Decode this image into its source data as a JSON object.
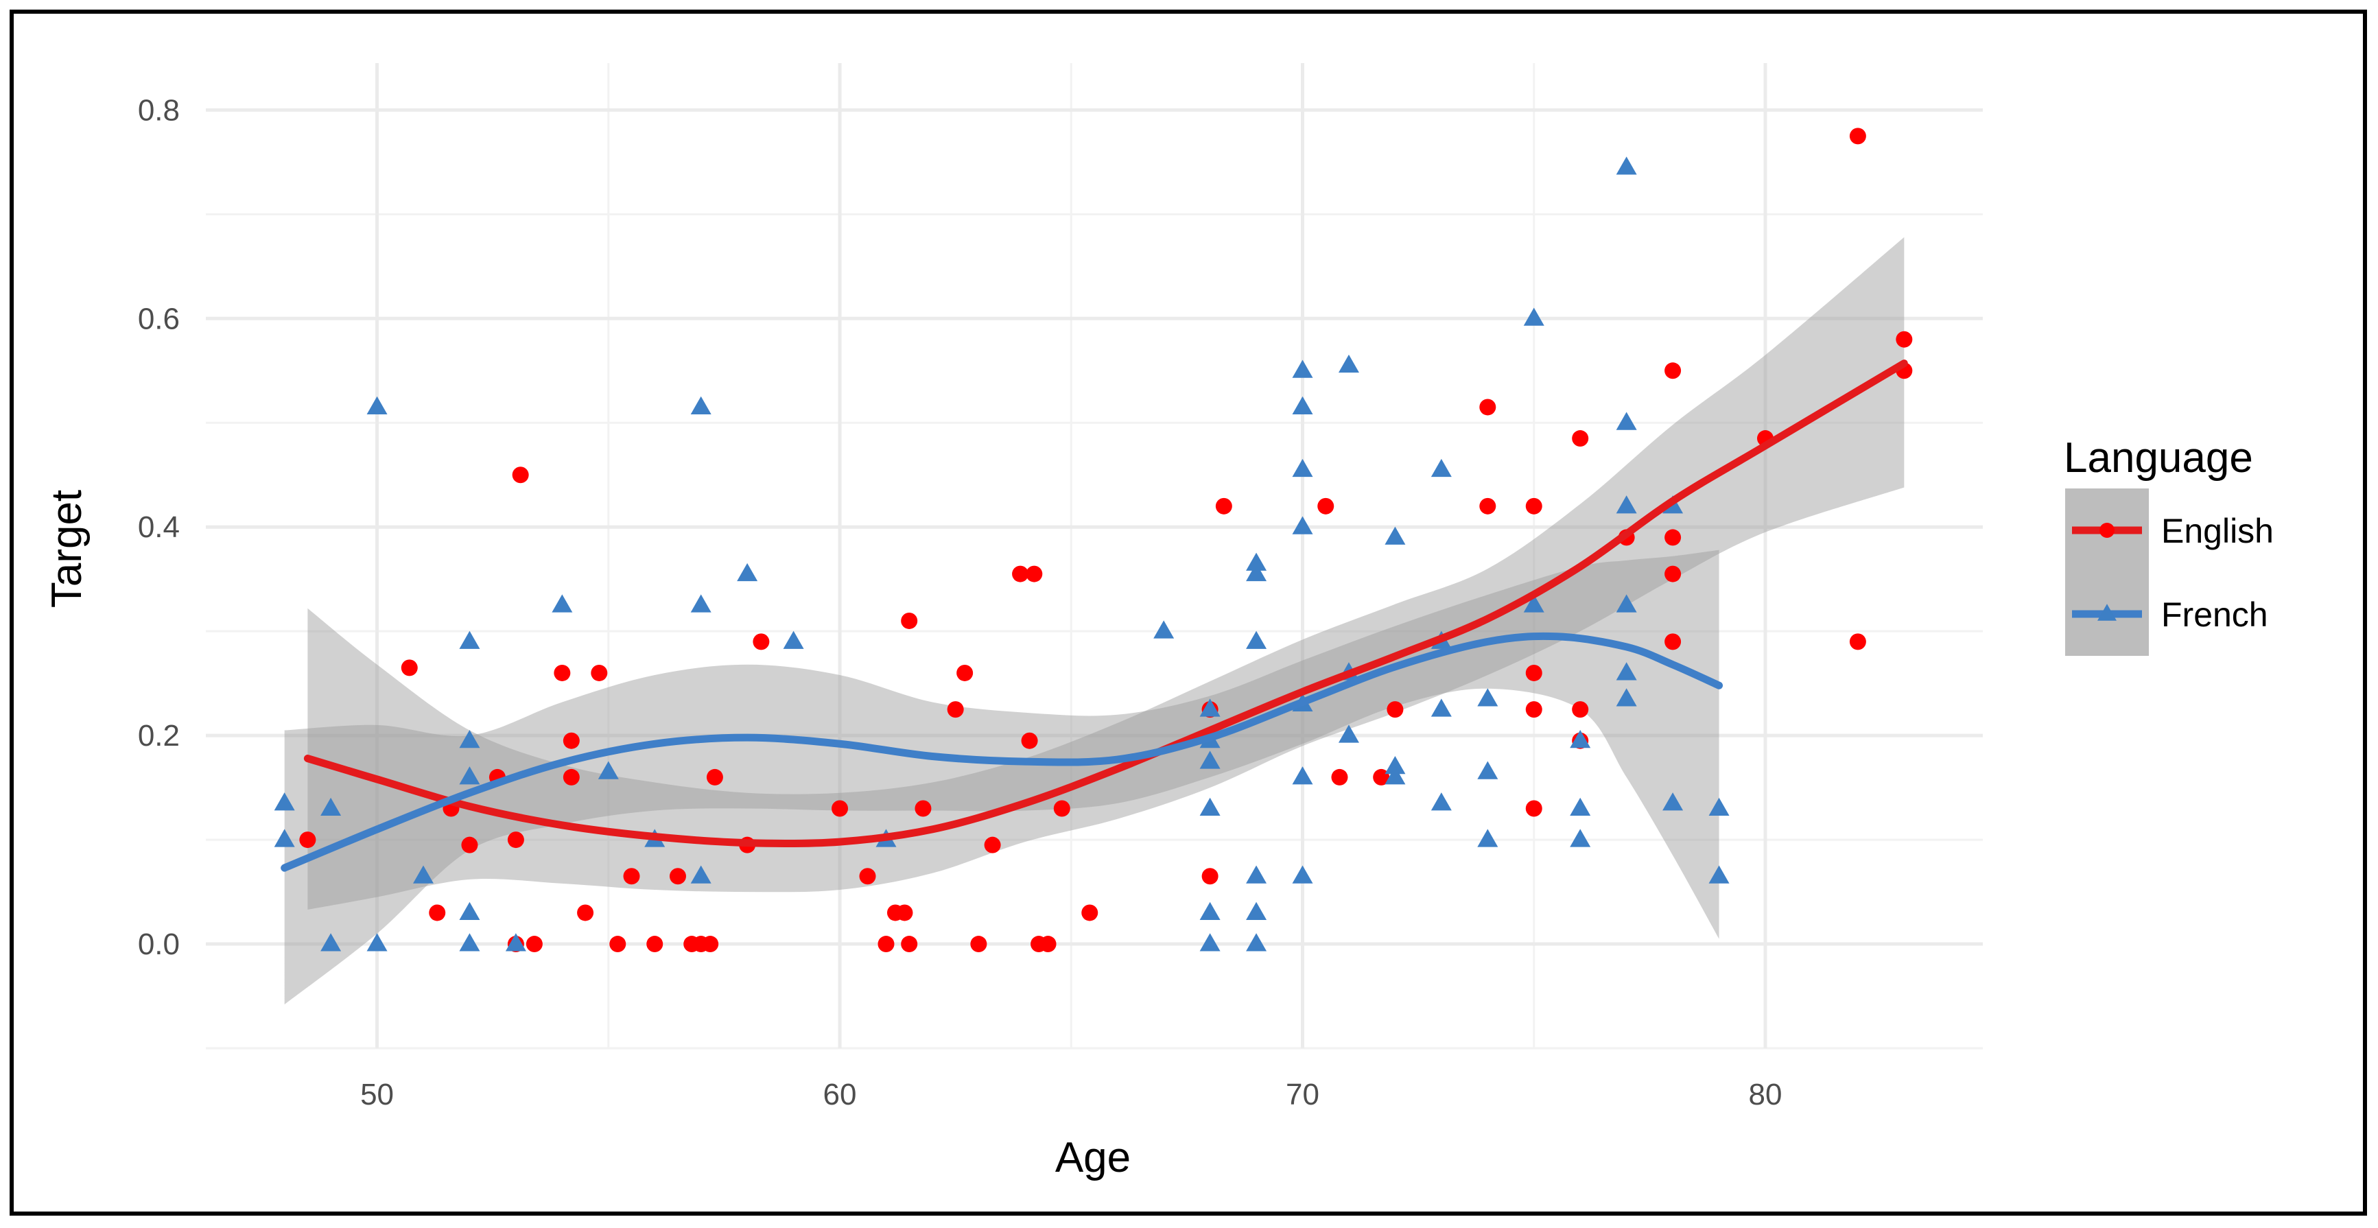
{
  "chart_data": {
    "type": "scatter",
    "title": "",
    "xlabel": "Age",
    "ylabel": "Target",
    "xlim": [
      46.3,
      84.7
    ],
    "ylim": [
      -0.1,
      0.845
    ],
    "x_ticks": [
      50,
      60,
      70,
      80
    ],
    "y_ticks": [
      0.0,
      0.2,
      0.4,
      0.6,
      0.8
    ],
    "x_tick_labels": [
      "50",
      "60",
      "70",
      "80"
    ],
    "y_tick_labels": [
      "0.0",
      "0.2",
      "0.4",
      "0.6",
      "0.8"
    ],
    "grid": true,
    "legend": {
      "title": "Language",
      "position": "right"
    },
    "series": [
      {
        "name": "English",
        "color": "#ff0000",
        "line_color": "#e41a1c",
        "marker": "circle",
        "points": [
          [
            48.5,
            0.1
          ],
          [
            50.7,
            0.265
          ],
          [
            51.3,
            0.03
          ],
          [
            51.6,
            0.13
          ],
          [
            52.0,
            0.095
          ],
          [
            52.6,
            0.16
          ],
          [
            53.0,
            0.1
          ],
          [
            53.1,
            0.45
          ],
          [
            53.4,
            0.0
          ],
          [
            53.0,
            0.0
          ],
          [
            54.0,
            0.26
          ],
          [
            54.2,
            0.195
          ],
          [
            54.2,
            0.16
          ],
          [
            54.5,
            0.03
          ],
          [
            54.8,
            0.26
          ],
          [
            55.2,
            0.0
          ],
          [
            55.5,
            0.065
          ],
          [
            56.0,
            0.0
          ],
          [
            56.5,
            0.065
          ],
          [
            56.8,
            0.0
          ],
          [
            57.0,
            0.0
          ],
          [
            57.2,
            0.0
          ],
          [
            57.3,
            0.16
          ],
          [
            58.0,
            0.095
          ],
          [
            58.3,
            0.29
          ],
          [
            60.0,
            0.13
          ],
          [
            60.6,
            0.065
          ],
          [
            61.0,
            0.0
          ],
          [
            61.2,
            0.03
          ],
          [
            61.4,
            0.03
          ],
          [
            61.5,
            0.31
          ],
          [
            61.5,
            0.0
          ],
          [
            61.8,
            0.13
          ],
          [
            62.5,
            0.225
          ],
          [
            62.7,
            0.26
          ],
          [
            63.0,
            0.0
          ],
          [
            63.3,
            0.095
          ],
          [
            63.9,
            0.355
          ],
          [
            64.1,
            0.195
          ],
          [
            64.2,
            0.355
          ],
          [
            64.3,
            0.0
          ],
          [
            64.5,
            0.0
          ],
          [
            64.8,
            0.13
          ],
          [
            65.4,
            0.03
          ],
          [
            68.0,
            0.065
          ],
          [
            68.0,
            0.225
          ],
          [
            68.3,
            0.42
          ],
          [
            70.5,
            0.42
          ],
          [
            70.8,
            0.16
          ],
          [
            71.7,
            0.16
          ],
          [
            72.0,
            0.225
          ],
          [
            74.0,
            0.515
          ],
          [
            74.0,
            0.42
          ],
          [
            75.0,
            0.42
          ],
          [
            75.0,
            0.26
          ],
          [
            75.0,
            0.225
          ],
          [
            75.0,
            0.13
          ],
          [
            76.0,
            0.485
          ],
          [
            76.0,
            0.225
          ],
          [
            76.0,
            0.195
          ],
          [
            77.0,
            0.39
          ],
          [
            78.0,
            0.55
          ],
          [
            78.0,
            0.39
          ],
          [
            78.0,
            0.355
          ],
          [
            78.0,
            0.29
          ],
          [
            80.0,
            0.485
          ],
          [
            82.0,
            0.775
          ],
          [
            82.0,
            0.29
          ],
          [
            83.0,
            0.58
          ],
          [
            83.0,
            0.55
          ]
        ],
        "fit": [
          [
            48.5,
            0.178
          ],
          [
            50,
            0.158
          ],
          [
            52,
            0.132
          ],
          [
            54,
            0.114
          ],
          [
            56,
            0.103
          ],
          [
            58,
            0.097
          ],
          [
            60,
            0.098
          ],
          [
            62,
            0.11
          ],
          [
            64,
            0.135
          ],
          [
            66,
            0.168
          ],
          [
            68,
            0.205
          ],
          [
            70,
            0.242
          ],
          [
            72,
            0.276
          ],
          [
            74,
            0.312
          ],
          [
            76,
            0.362
          ],
          [
            78,
            0.425
          ],
          [
            80,
            0.478
          ],
          [
            83,
            0.557
          ]
        ],
        "band": [
          [
            48.5,
            0.033,
            0.322
          ],
          [
            50,
            0.045,
            0.268
          ],
          [
            52,
            0.062,
            0.205
          ],
          [
            54,
            0.058,
            0.172
          ],
          [
            56,
            0.052,
            0.155
          ],
          [
            58,
            0.05,
            0.145
          ],
          [
            60,
            0.052,
            0.145
          ],
          [
            62,
            0.068,
            0.155
          ],
          [
            64,
            0.098,
            0.178
          ],
          [
            66,
            0.12,
            0.212
          ],
          [
            68,
            0.15,
            0.252
          ],
          [
            70,
            0.19,
            0.292
          ],
          [
            72,
            0.222,
            0.326
          ],
          [
            74,
            0.258,
            0.36
          ],
          [
            76,
            0.3,
            0.422
          ],
          [
            78,
            0.35,
            0.498
          ],
          [
            80,
            0.395,
            0.565
          ],
          [
            83,
            0.438,
            0.678
          ]
        ]
      },
      {
        "name": "French",
        "color": "#3d7fc5",
        "line_color": "#3f7fc8",
        "marker": "triangle",
        "points": [
          [
            48.0,
            0.135
          ],
          [
            48.0,
            0.1
          ],
          [
            49.0,
            0.13
          ],
          [
            49.0,
            0.0
          ],
          [
            50.0,
            0.515
          ],
          [
            50.0,
            0.0
          ],
          [
            51.0,
            0.065
          ],
          [
            52.0,
            0.29
          ],
          [
            52.0,
            0.195
          ],
          [
            52.0,
            0.16
          ],
          [
            52.0,
            0.03
          ],
          [
            52.0,
            0.0
          ],
          [
            53.0,
            0.0
          ],
          [
            54.0,
            0.325
          ],
          [
            55.0,
            0.165
          ],
          [
            56.0,
            0.1
          ],
          [
            57.0,
            0.515
          ],
          [
            57.0,
            0.325
          ],
          [
            57.0,
            0.065
          ],
          [
            58.0,
            0.355
          ],
          [
            59.0,
            0.29
          ],
          [
            61.0,
            0.1
          ],
          [
            67.0,
            0.3
          ],
          [
            68.0,
            0.225
          ],
          [
            68.0,
            0.195
          ],
          [
            68.0,
            0.175
          ],
          [
            68.0,
            0.13
          ],
          [
            68.0,
            0.03
          ],
          [
            68.0,
            0.0
          ],
          [
            69.0,
            0.365
          ],
          [
            69.0,
            0.355
          ],
          [
            69.0,
            0.29
          ],
          [
            69.0,
            0.065
          ],
          [
            69.0,
            0.03
          ],
          [
            69.0,
            0.0
          ],
          [
            70.0,
            0.55
          ],
          [
            70.0,
            0.515
          ],
          [
            70.0,
            0.455
          ],
          [
            70.0,
            0.4
          ],
          [
            70.0,
            0.23
          ],
          [
            70.0,
            0.16
          ],
          [
            70.0,
            0.065
          ],
          [
            71.0,
            0.555
          ],
          [
            71.0,
            0.26
          ],
          [
            71.0,
            0.2
          ],
          [
            72.0,
            0.39
          ],
          [
            72.0,
            0.17
          ],
          [
            72.0,
            0.16
          ],
          [
            73.0,
            0.455
          ],
          [
            73.0,
            0.29
          ],
          [
            73.0,
            0.225
          ],
          [
            73.0,
            0.135
          ],
          [
            74.0,
            0.235
          ],
          [
            74.0,
            0.165
          ],
          [
            74.0,
            0.1
          ],
          [
            75.0,
            0.6
          ],
          [
            75.0,
            0.325
          ],
          [
            76.0,
            0.195
          ],
          [
            76.0,
            0.13
          ],
          [
            76.0,
            0.1
          ],
          [
            77.0,
            0.745
          ],
          [
            77.0,
            0.5
          ],
          [
            77.0,
            0.42
          ],
          [
            77.0,
            0.325
          ],
          [
            77.0,
            0.26
          ],
          [
            77.0,
            0.235
          ],
          [
            78.0,
            0.42
          ],
          [
            78.0,
            0.135
          ],
          [
            79.0,
            0.13
          ],
          [
            79.0,
            0.065
          ]
        ],
        "fit": [
          [
            48,
            0.073
          ],
          [
            50,
            0.11
          ],
          [
            52,
            0.145
          ],
          [
            54,
            0.174
          ],
          [
            56,
            0.192
          ],
          [
            58,
            0.198
          ],
          [
            60,
            0.192
          ],
          [
            62,
            0.18
          ],
          [
            64,
            0.175
          ],
          [
            66,
            0.177
          ],
          [
            68,
            0.198
          ],
          [
            70,
            0.232
          ],
          [
            72,
            0.266
          ],
          [
            74,
            0.29
          ],
          [
            75.5,
            0.295
          ],
          [
            77,
            0.285
          ],
          [
            78,
            0.268
          ],
          [
            79,
            0.248
          ]
        ],
        "band": [
          [
            48,
            -0.058,
            0.205
          ],
          [
            50,
            0.01,
            0.21
          ],
          [
            52,
            0.09,
            0.2
          ],
          [
            54,
            0.115,
            0.232
          ],
          [
            56,
            0.128,
            0.258
          ],
          [
            58,
            0.13,
            0.268
          ],
          [
            60,
            0.128,
            0.258
          ],
          [
            62,
            0.128,
            0.232
          ],
          [
            64,
            0.128,
            0.222
          ],
          [
            66,
            0.135,
            0.22
          ],
          [
            68,
            0.16,
            0.238
          ],
          [
            70,
            0.192,
            0.272
          ],
          [
            72,
            0.228,
            0.305
          ],
          [
            74,
            0.245,
            0.335
          ],
          [
            76,
            0.225,
            0.362
          ],
          [
            77,
            0.16,
            0.368
          ],
          [
            78,
            0.085,
            0.372
          ],
          [
            79,
            0.005,
            0.378
          ]
        ]
      }
    ]
  }
}
